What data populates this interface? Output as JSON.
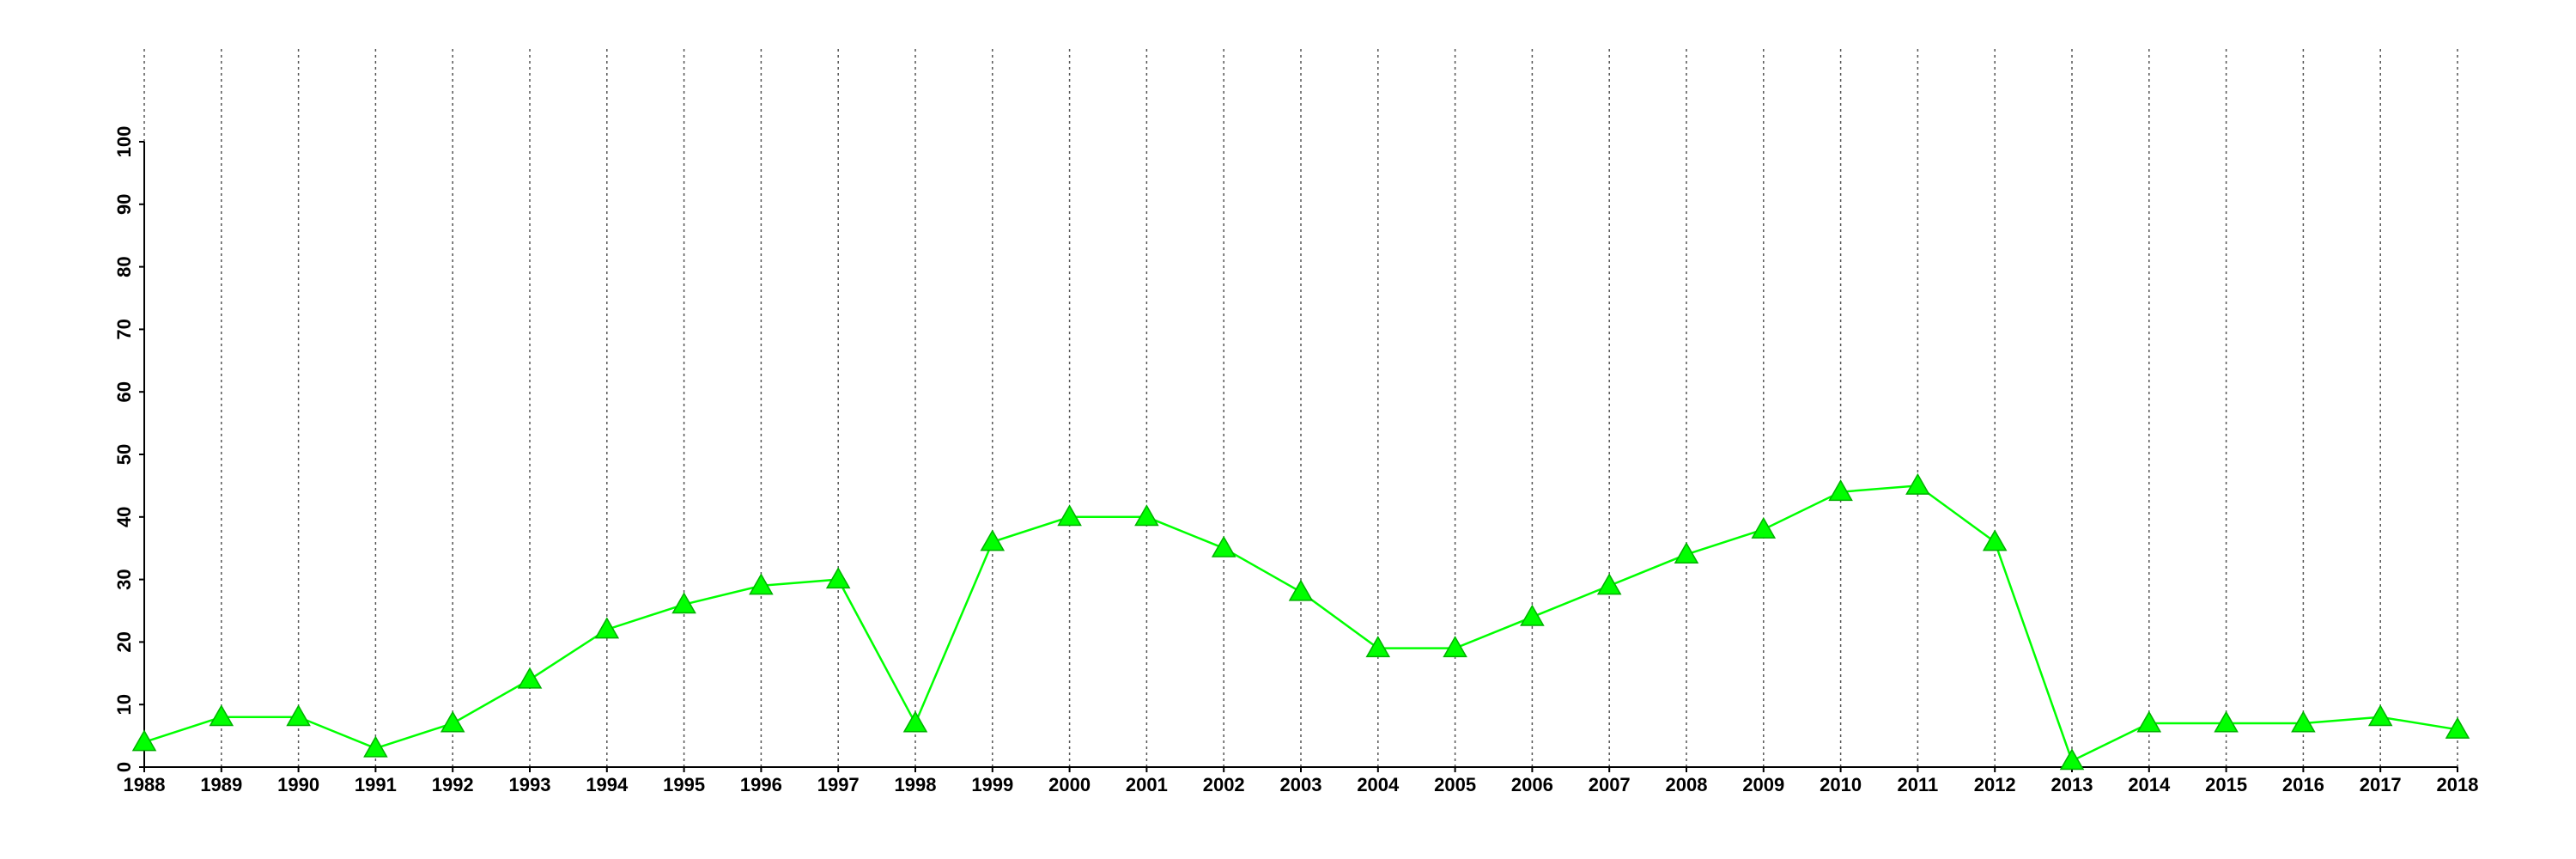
{
  "chart_data": {
    "type": "line",
    "x": [
      1988,
      1989,
      1990,
      1991,
      1992,
      1993,
      1994,
      1995,
      1996,
      1997,
      1998,
      1999,
      2000,
      2001,
      2002,
      2003,
      2004,
      2005,
      2006,
      2007,
      2008,
      2009,
      2010,
      2011,
      2012,
      2013,
      2014,
      2015,
      2016,
      2017,
      2018
    ],
    "series": [
      {
        "color": "#00ff00",
        "marker": "triangle",
        "values": [
          4,
          8,
          8,
          3,
          7,
          14,
          22,
          26,
          29,
          30,
          7,
          36,
          40,
          40,
          35,
          28,
          19,
          19,
          24,
          29,
          34,
          38,
          44,
          45,
          36,
          1,
          7,
          7,
          7,
          8,
          6
        ]
      }
    ],
    "xlim": [
      1988,
      2018
    ],
    "xticks": [
      1988,
      1989,
      1990,
      1991,
      1992,
      1993,
      1994,
      1995,
      1996,
      1997,
      1998,
      1999,
      2000,
      2001,
      2002,
      2003,
      2004,
      2005,
      2006,
      2007,
      2008,
      2009,
      2010,
      2011,
      2012,
      2013,
      2014,
      2015,
      2016,
      2017,
      2018
    ],
    "ylim": [
      0,
      100
    ],
    "yticks": [
      0,
      10,
      20,
      30,
      40,
      50,
      60,
      70,
      80,
      90,
      100
    ],
    "grid": "x"
  }
}
